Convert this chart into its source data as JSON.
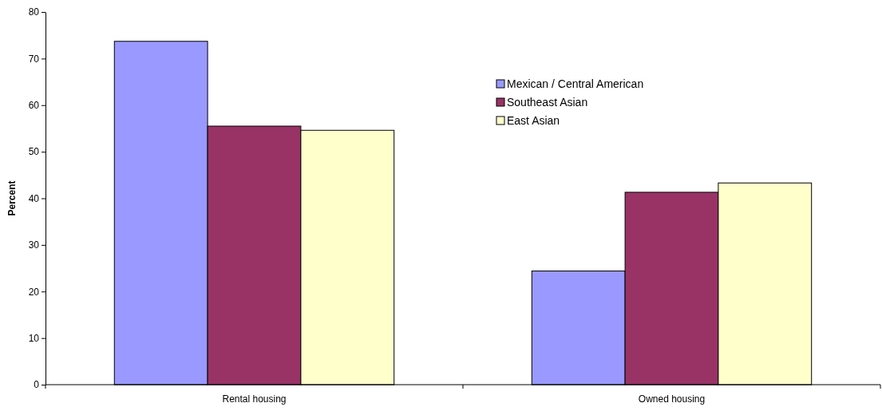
{
  "chart_data": {
    "type": "bar",
    "ylabel": "Percent",
    "categories": [
      "Rental housing",
      "Owned housing"
    ],
    "series": [
      {
        "name": "Mexican / Central American",
        "color": "#9999ff",
        "values": [
          73.7,
          24.4
        ]
      },
      {
        "name": "Southeast Asian",
        "color": "#993366",
        "values": [
          55.5,
          41.3
        ]
      },
      {
        "name": "East Asian",
        "color": "#ffffcc",
        "values": [
          54.6,
          43.3
        ]
      }
    ],
    "ylim": [
      0,
      80
    ],
    "yticks": [
      0,
      10,
      20,
      30,
      40,
      50,
      60,
      70,
      80
    ],
    "grid": false,
    "legend": "top right"
  }
}
